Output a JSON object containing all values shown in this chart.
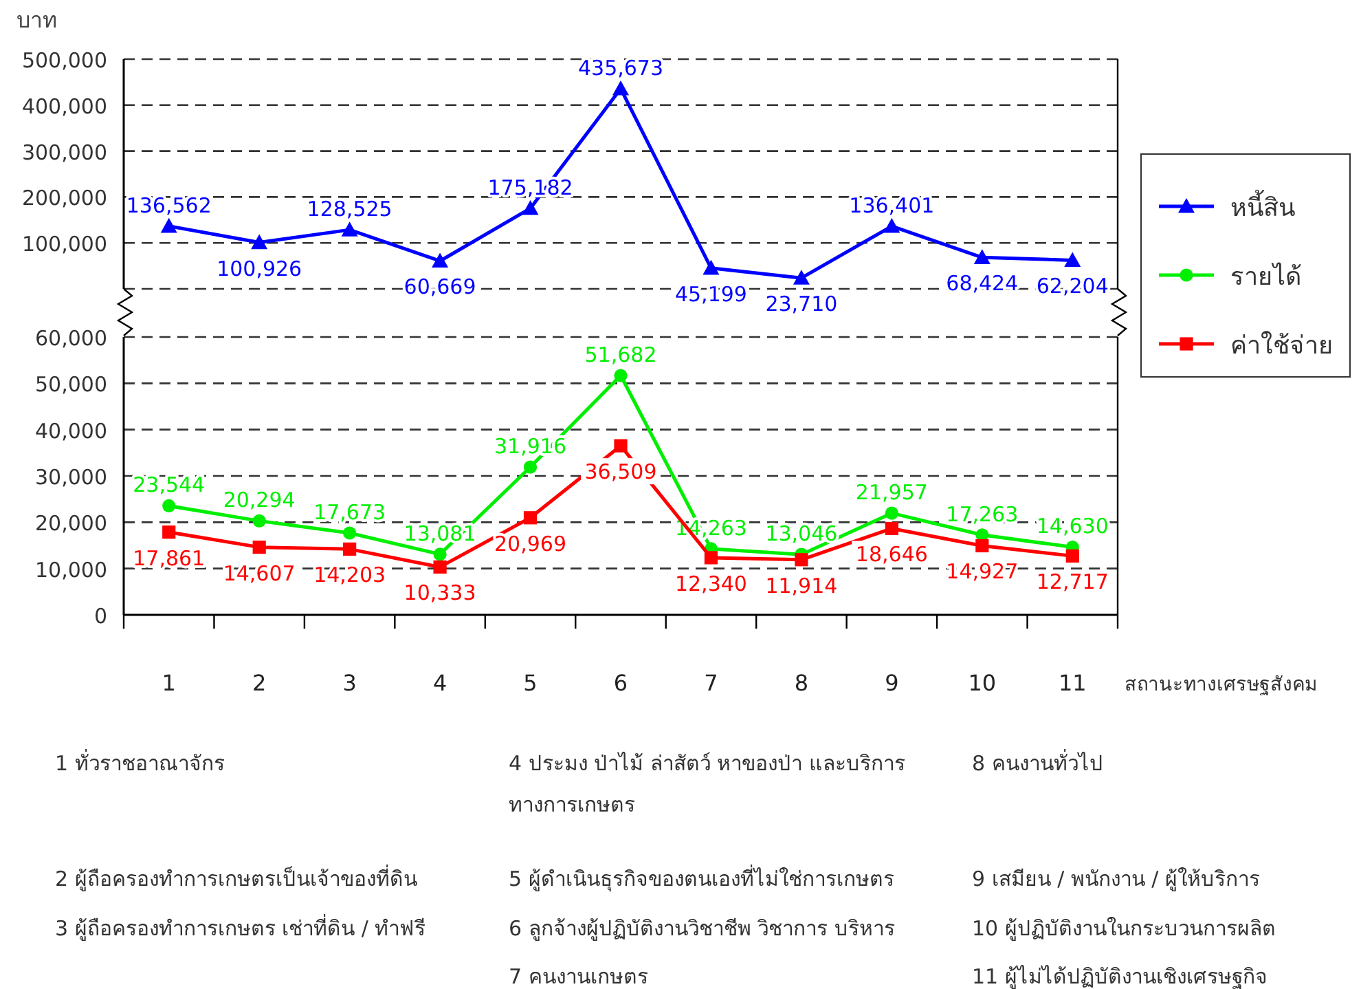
{
  "chart_data": [
    {
      "type": "line",
      "ylabel": "บาท",
      "categories": [
        null,
        null,
        null,
        null,
        null,
        null,
        null,
        null,
        null,
        null,
        null
      ],
      "series": [
        {
          "name": "หนี้สิน",
          "color": "#0000ff",
          "marker": "triangle",
          "values": [
            136562,
            100926,
            128525,
            60669,
            175182,
            435673,
            45199,
            23710,
            136401,
            68424,
            62204
          ],
          "value_labels": [
            "136,562",
            "100,926",
            "128,525",
            "60,669",
            "175,182",
            "435,673",
            "45,199",
            "23,710",
            "136,401",
            "68,424",
            "62,204"
          ]
        }
      ],
      "ylim": [
        0,
        500000
      ],
      "yticks": [
        {
          "value": 0,
          "label": null
        },
        {
          "value": 100000,
          "label": "100,000"
        },
        {
          "value": 200000,
          "label": "200,000"
        },
        {
          "value": 300000,
          "label": "300,000"
        },
        {
          "value": 400000,
          "label": "400,000"
        },
        {
          "value": 500000,
          "label": "500,000"
        }
      ],
      "grid": "y",
      "legend": "right",
      "tick_labels": "y"
    },
    {
      "type": "line",
      "xlabel": "สถานะทางเศรษฐสังคม",
      "categories": [
        "1",
        "2",
        "3",
        "4",
        "5",
        "6",
        "7",
        "8",
        "9",
        "10",
        "11"
      ],
      "series": [
        {
          "name": "รายได้",
          "color": "#00ee00",
          "marker": "circle",
          "values": [
            23544,
            20294,
            17673,
            13081,
            31916,
            51682,
            14263,
            13046,
            21957,
            17263,
            14630
          ],
          "value_labels": [
            "23,544",
            "20,294",
            "17,673",
            "13,081",
            "31,916",
            "51,682",
            "14,263",
            "13,046",
            "21,957",
            "17,263",
            "14,630"
          ]
        },
        {
          "name": "ค่าใช้จ่าย",
          "color": "#ff0000",
          "marker": "square",
          "values": [
            17861,
            14607,
            14203,
            10333,
            20969,
            36509,
            12340,
            11914,
            18646,
            14927,
            12717
          ],
          "value_labels": [
            "17,861",
            "14,607",
            "14,203",
            "10,333",
            "20,969",
            "36,509",
            "12,340",
            "11,914",
            "18,646",
            "14,927",
            "12,717"
          ]
        }
      ],
      "ylim": [
        0,
        60000
      ],
      "yticks": [
        {
          "value": 0,
          "label": "0"
        },
        {
          "value": 10000,
          "label": "10,000"
        },
        {
          "value": 20000,
          "label": "20,000"
        },
        {
          "value": 30000,
          "label": "30,000"
        },
        {
          "value": 40000,
          "label": "40,000"
        },
        {
          "value": 50000,
          "label": "50,000"
        },
        {
          "value": 60000,
          "label": "60,000"
        }
      ],
      "grid": "y",
      "legend": "right",
      "annotations": [
        "1  ทั่วราชอาณาจักร",
        "2  ผู้ถือครองทำการเกษตรเป็นเจ้าของที่ดิน",
        "3  ผู้ถือครองทำการเกษตร เช่าที่ดิน / ทำฟรี",
        "4  ประมง ป่าไม้ ล่าสัตว์ หาของป่า และบริการทางการเกษตร",
        "5  ผู้ดำเนินธุรกิจของตนเองที่ไม่ใช่การเกษตร",
        "6  ลูกจ้างผู้ปฏิบัติงานวิชาชีพ วิชาการ บริหาร",
        "7  คนงานเกษตร",
        "8  คนงานทั่วไป",
        "9  เสมียน / พนักงาน / ผู้ให้บริการ",
        "10  ผู้ปฏิบัติงานในกระบวนการผลิต",
        "11  ผู้ไม่ได้ปฏิบัติงานเชิงเศรษฐกิจ"
      ]
    }
  ]
}
